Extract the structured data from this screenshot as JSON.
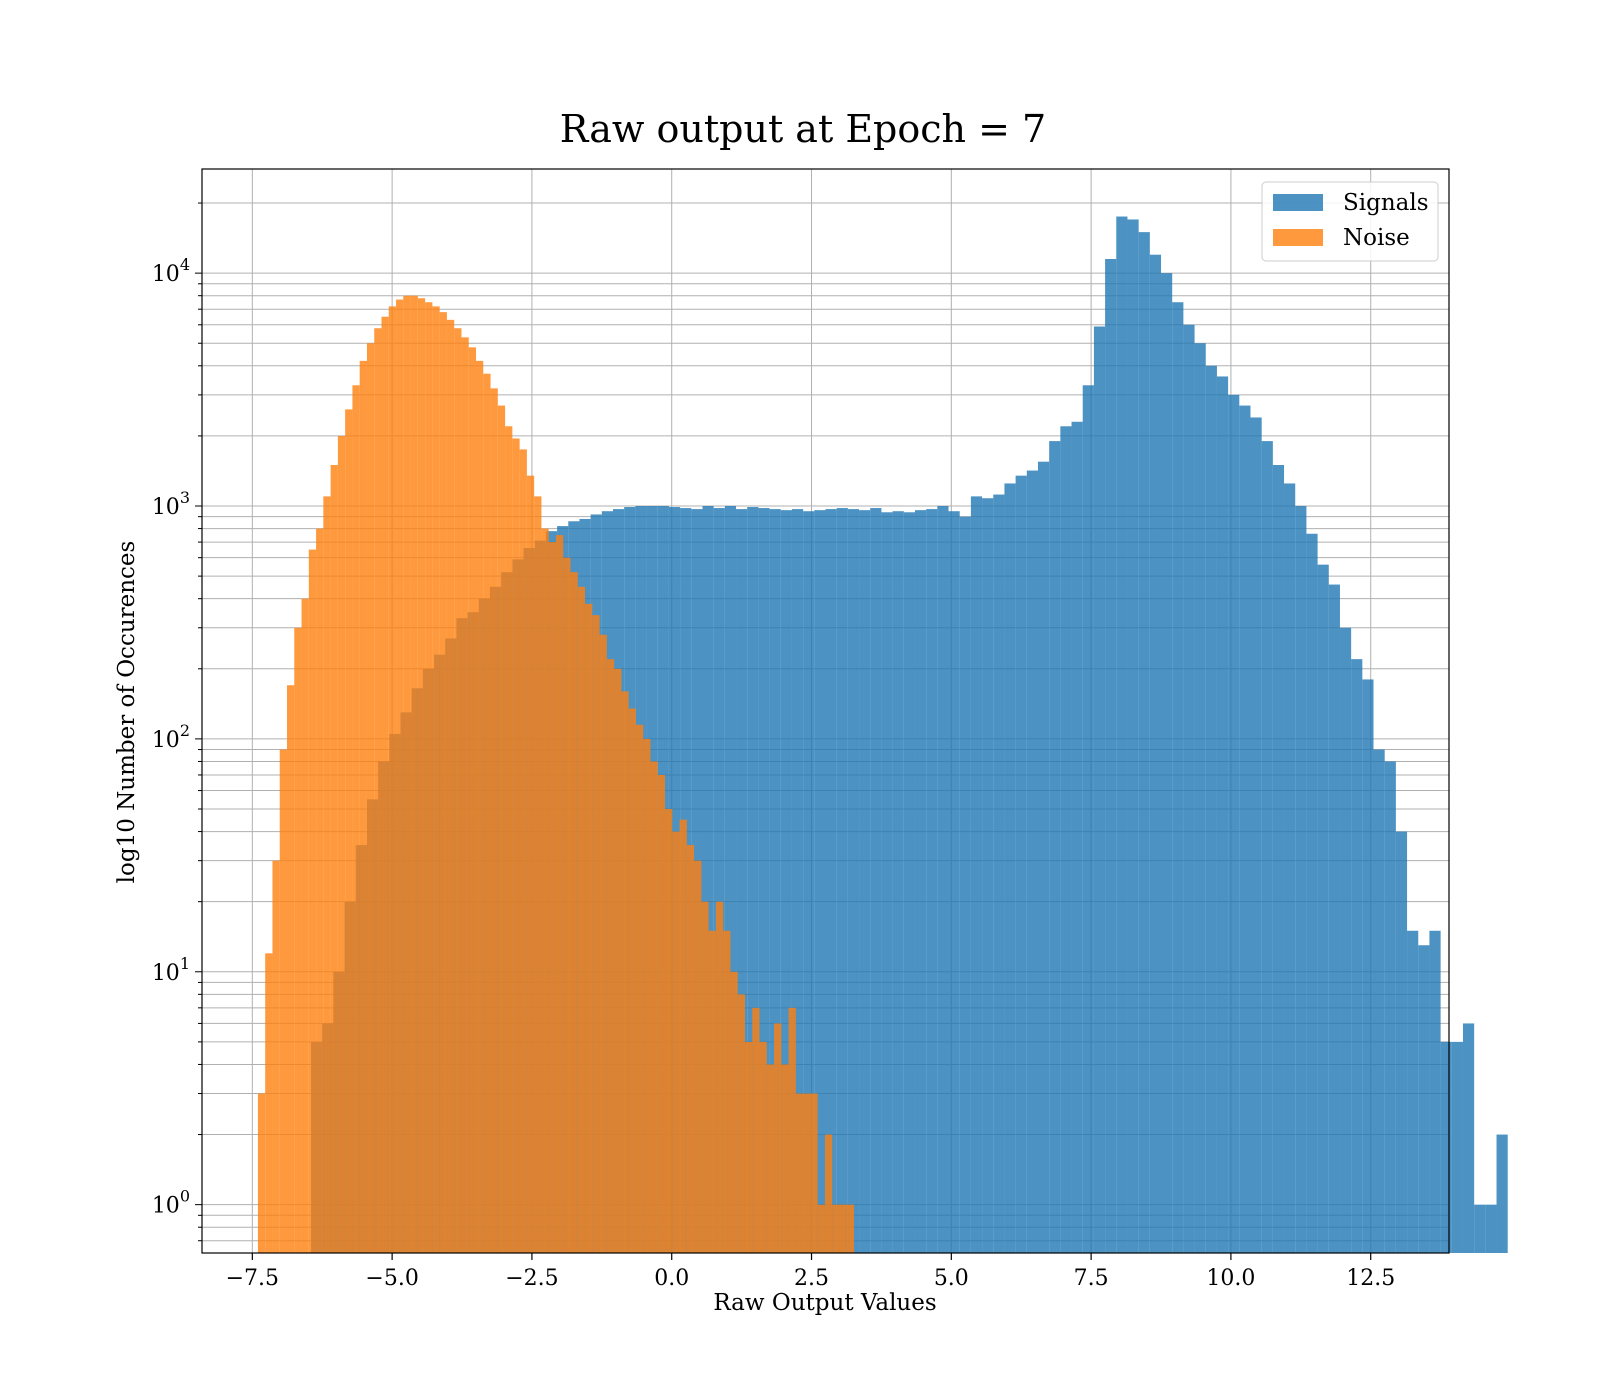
{
  "chart_data": {
    "type": "bar",
    "title": "Raw output at Epoch = 7",
    "xlabel": "Raw Output Values",
    "ylabel": "log10 Number of Occurences",
    "y_scale": "log",
    "xlim": [
      -8.4,
      13.9
    ],
    "ylim": [
      0.62,
      28000
    ],
    "x_ticks": [
      -7.5,
      -5.0,
      -2.5,
      0.0,
      2.5,
      5.0,
      7.5,
      10.0,
      12.5
    ],
    "x_tick_labels": [
      "−7.5",
      "−5.0",
      "−2.5",
      "0.0",
      "2.5",
      "5.0",
      "7.5",
      "10.0",
      "12.5"
    ],
    "y_ticks": [
      1,
      10,
      100,
      1000,
      10000
    ],
    "y_tick_labels": [
      {
        "base": "10",
        "exp": "0"
      },
      {
        "base": "10",
        "exp": "1"
      },
      {
        "base": "10",
        "exp": "2"
      },
      {
        "base": "10",
        "exp": "3"
      },
      {
        "base": "10",
        "exp": "4"
      }
    ],
    "grid": true,
    "legend_position": "top-right",
    "series": [
      {
        "name": "Signals",
        "color": "#1f77b4",
        "opacity": 0.8,
        "x_start": -6.45,
        "bin_width": 0.2,
        "values": [
          5,
          6,
          10,
          20,
          35,
          55,
          80,
          105,
          130,
          165,
          200,
          230,
          270,
          330,
          350,
          400,
          450,
          520,
          590,
          660,
          710,
          780,
          820,
          860,
          880,
          920,
          950,
          970,
          990,
          1000,
          1000,
          1000,
          990,
          980,
          970,
          1000,
          980,
          1000,
          970,
          990,
          980,
          970,
          960,
          970,
          950,
          960,
          970,
          980,
          970,
          960,
          980,
          940,
          950,
          940,
          960,
          970,
          1000,
          950,
          900,
          1100,
          1080,
          1120,
          1250,
          1350,
          1420,
          1550,
          1900,
          2200,
          2300,
          3300,
          5900,
          11500,
          17500,
          17000,
          15000,
          12000,
          10000,
          7500,
          6000,
          5000,
          4000,
          3600,
          3000,
          2700,
          2400,
          1900,
          1500,
          1250,
          1000,
          760,
          560,
          460,
          300,
          220,
          180,
          90,
          80,
          40,
          15,
          13,
          15,
          5,
          5,
          6,
          1,
          1,
          2
        ]
      },
      {
        "name": "Noise",
        "color": "#ff7f0e",
        "opacity": 0.8,
        "x_start": -7.4,
        "bin_width": 0.13,
        "values": [
          3,
          12,
          30,
          90,
          170,
          300,
          400,
          650,
          800,
          1100,
          1500,
          2000,
          2600,
          3300,
          4200,
          5000,
          5800,
          6500,
          7200,
          7700,
          8000,
          8000,
          7800,
          7500,
          7200,
          6800,
          6300,
          5800,
          5300,
          4800,
          4200,
          3700,
          3200,
          2700,
          2200,
          1950,
          1750,
          1350,
          1100,
          800,
          700,
          750,
          600,
          520,
          450,
          380,
          340,
          280,
          220,
          200,
          160,
          135,
          115,
          100,
          80,
          70,
          50,
          40,
          45,
          35,
          30,
          20,
          15,
          20,
          15,
          10,
          8,
          5,
          7,
          5,
          4,
          6,
          4,
          7,
          3,
          3,
          3,
          1,
          2,
          1,
          1,
          1
        ]
      }
    ]
  }
}
